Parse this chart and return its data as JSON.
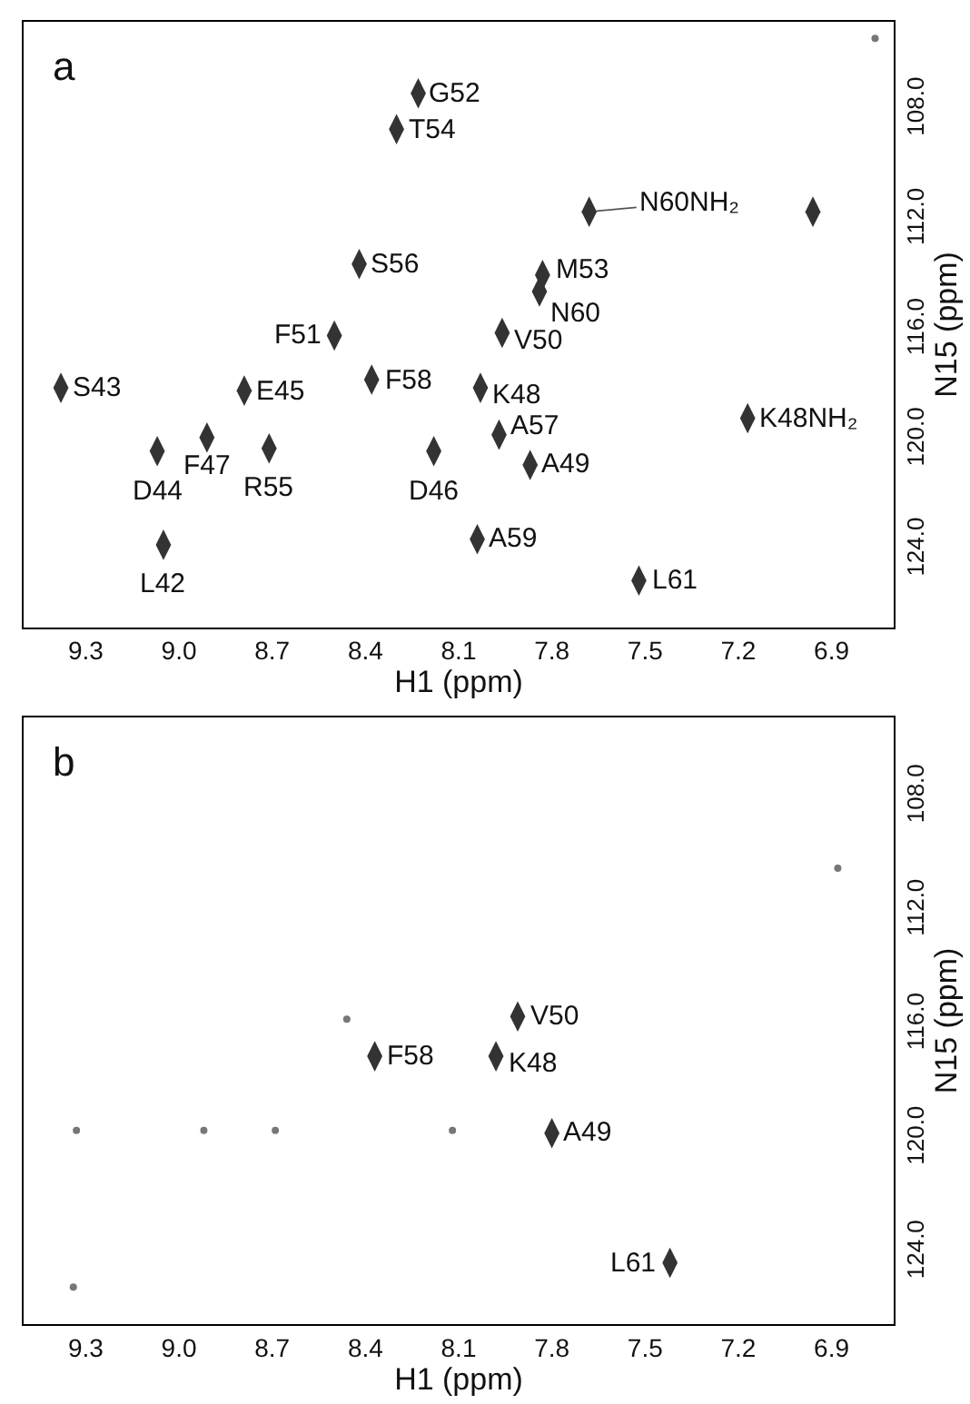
{
  "chart_data": [
    {
      "type": "scatter",
      "title": "a",
      "xlabel": "H1 (ppm)",
      "ylabel": "N15 (ppm)",
      "xlim": [
        9.5,
        6.7
      ],
      "ylim": [
        126.8,
        104.8
      ],
      "xticks": [
        9.3,
        {
          "value": 9.0,
          "label": "9.0"
        },
        8.7,
        8.4,
        8.1,
        7.8,
        7.5,
        7.2,
        6.9
      ],
      "yticks": [
        {
          "value": 108,
          "label": "108.0"
        },
        {
          "value": 112,
          "label": "112.0"
        },
        {
          "value": 116,
          "label": "116.0"
        },
        {
          "value": 120,
          "label": "120.0"
        },
        {
          "value": 124,
          "label": "124.0"
        }
      ],
      "marker": "diamond",
      "series": [
        {
          "color": "#333333",
          "x": [
            8.23,
            8.3,
            7.68,
            6.96,
            8.42,
            7.83,
            7.84,
            8.5,
            7.96,
            9.38,
            8.79,
            8.38,
            8.03,
            7.97,
            7.17,
            9.07,
            8.91,
            8.71,
            8.18,
            7.87,
            8.04,
            9.05,
            7.52
          ],
          "values": [
            107.4,
            108.7,
            111.7,
            111.7,
            113.6,
            114.0,
            114.6,
            116.2,
            116.1,
            118.1,
            118.2,
            117.8,
            118.1,
            119.8,
            119.2,
            120.4,
            119.9,
            120.3,
            120.4,
            120.9,
            123.6,
            123.8,
            125.1
          ]
        },
        {
          "color": "#777777",
          "marker": "circle",
          "x": [
            6.76
          ],
          "values": [
            105.4
          ]
        }
      ],
      "annotations": [
        {
          "text": "G52",
          "x": 8.23,
          "y": 107.4
        },
        {
          "text": "T54",
          "x": 8.3,
          "y": 108.7
        },
        {
          "text": "N60NH₂",
          "x": 7.68,
          "y": 111.7
        },
        {
          "text": "S56",
          "x": 8.42,
          "y": 113.6
        },
        {
          "text": "M53",
          "x": 7.83,
          "y": 114.0
        },
        {
          "text": "N60",
          "x": 7.84,
          "y": 114.6
        },
        {
          "text": "F51",
          "x": 8.5,
          "y": 116.2
        },
        {
          "text": "V50",
          "x": 7.96,
          "y": 116.1
        },
        {
          "text": "S43",
          "x": 9.38,
          "y": 118.1
        },
        {
          "text": "E45",
          "x": 8.79,
          "y": 118.2
        },
        {
          "text": "F58",
          "x": 8.38,
          "y": 117.8
        },
        {
          "text": "K48",
          "x": 8.03,
          "y": 118.1
        },
        {
          "text": "A57",
          "x": 7.97,
          "y": 119.8
        },
        {
          "text": "K48NH₂",
          "x": 7.17,
          "y": 119.2
        },
        {
          "text": "D44",
          "x": 9.07,
          "y": 120.4
        },
        {
          "text": "F47",
          "x": 8.91,
          "y": 119.9
        },
        {
          "text": "R55",
          "x": 8.71,
          "y": 120.3
        },
        {
          "text": "D46",
          "x": 8.18,
          "y": 120.4
        },
        {
          "text": "A49",
          "x": 7.87,
          "y": 120.9
        },
        {
          "text": "A59",
          "x": 8.04,
          "y": 123.6
        },
        {
          "text": "L42",
          "x": 9.05,
          "y": 123.8
        },
        {
          "text": "L61",
          "x": 7.52,
          "y": 125.1
        }
      ]
    },
    {
      "type": "scatter",
      "title": "b",
      "xlabel": "H1 (ppm)",
      "ylabel": "N15 (ppm)",
      "xlim": [
        9.5,
        6.7
      ],
      "ylim": [
        126.5,
        105.2
      ],
      "xticks": [
        9.3,
        {
          "value": 9.0,
          "label": "9.0"
        },
        8.7,
        8.4,
        8.1,
        7.8,
        7.5,
        7.2,
        6.9
      ],
      "yticks": [
        {
          "value": 108,
          "label": "108.0"
        },
        {
          "value": 112,
          "label": "112.0"
        },
        {
          "value": 116,
          "label": "116.0"
        },
        {
          "value": 120,
          "label": "120.0"
        },
        {
          "value": 124,
          "label": "124.0"
        }
      ],
      "marker": "diamond",
      "series": [
        {
          "color": "#333333",
          "x": [
            7.91,
            8.37,
            7.98,
            7.8,
            7.42
          ],
          "values": [
            115.7,
            117.1,
            117.1,
            119.8,
            124.35
          ]
        },
        {
          "color": "#777777",
          "marker": "circle",
          "x": [
            6.88,
            9.33,
            8.92,
            8.69,
            8.12,
            9.34,
            8.46
          ],
          "values": [
            110.5,
            119.7,
            119.7,
            119.7,
            119.7,
            125.2,
            115.8
          ]
        }
      ],
      "annotations": [
        {
          "text": "V50",
          "x": 7.91,
          "y": 115.7
        },
        {
          "text": "F58",
          "x": 8.37,
          "y": 117.1
        },
        {
          "text": "K48",
          "x": 7.98,
          "y": 117.1
        },
        {
          "text": "A49",
          "x": 7.8,
          "y": 119.8
        },
        {
          "text": "L61",
          "x": 7.42,
          "y": 124.35
        }
      ]
    }
  ]
}
